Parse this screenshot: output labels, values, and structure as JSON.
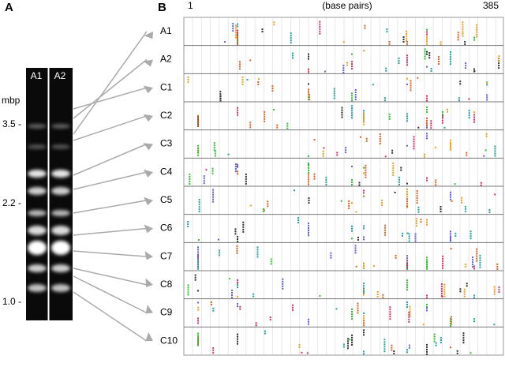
{
  "panel_a": {
    "label": "A",
    "lanes": [
      "A1",
      "A2"
    ],
    "unit": "mbp",
    "size_marks": [
      "3.5 -",
      "2.2 -",
      "1.0 -"
    ]
  },
  "panel_b": {
    "label": "B",
    "axis_start": "1",
    "axis_label": "(base pairs)",
    "axis_end": "385",
    "rows": [
      "A1",
      "A2",
      "C1",
      "C2",
      "C3",
      "C4",
      "C5",
      "C6",
      "C7",
      "C8",
      "C9",
      "C10"
    ]
  }
}
